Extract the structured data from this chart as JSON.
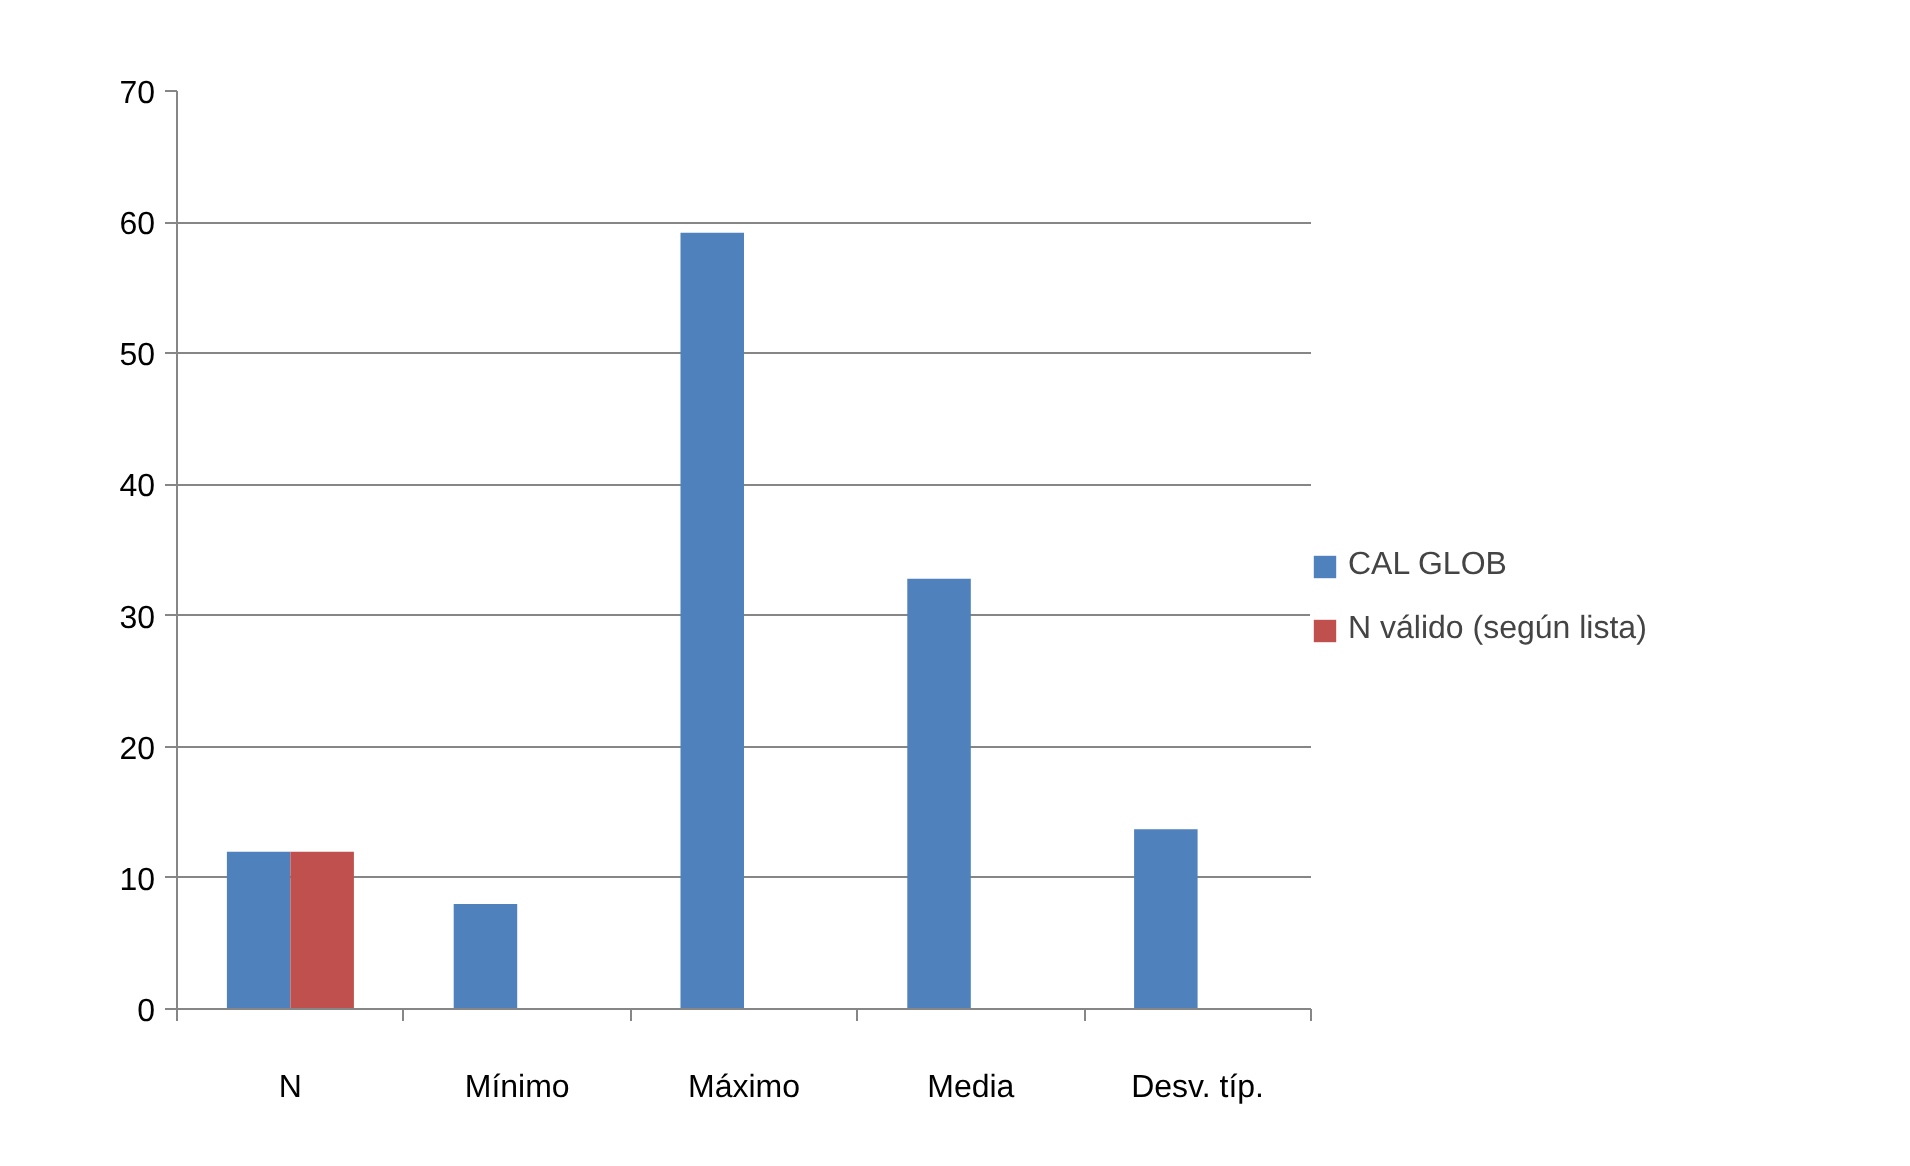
{
  "chart_data": {
    "type": "bar",
    "categories": [
      "N",
      "Mínimo",
      "Máximo",
      "Media",
      "Desv. típ."
    ],
    "series": [
      {
        "name": "CAL GLOB",
        "color": "#4f81bd",
        "values": [
          12,
          8,
          59.2,
          32.8,
          13.7
        ]
      },
      {
        "name": "N válido (según lista)",
        "color": "#c0504d",
        "values": [
          12,
          null,
          null,
          null,
          null
        ]
      }
    ],
    "ylim": [
      0,
      70
    ],
    "yticks": [
      0,
      10,
      20,
      30,
      40,
      50,
      60,
      70
    ],
    "grid": "y",
    "legend": "right"
  }
}
